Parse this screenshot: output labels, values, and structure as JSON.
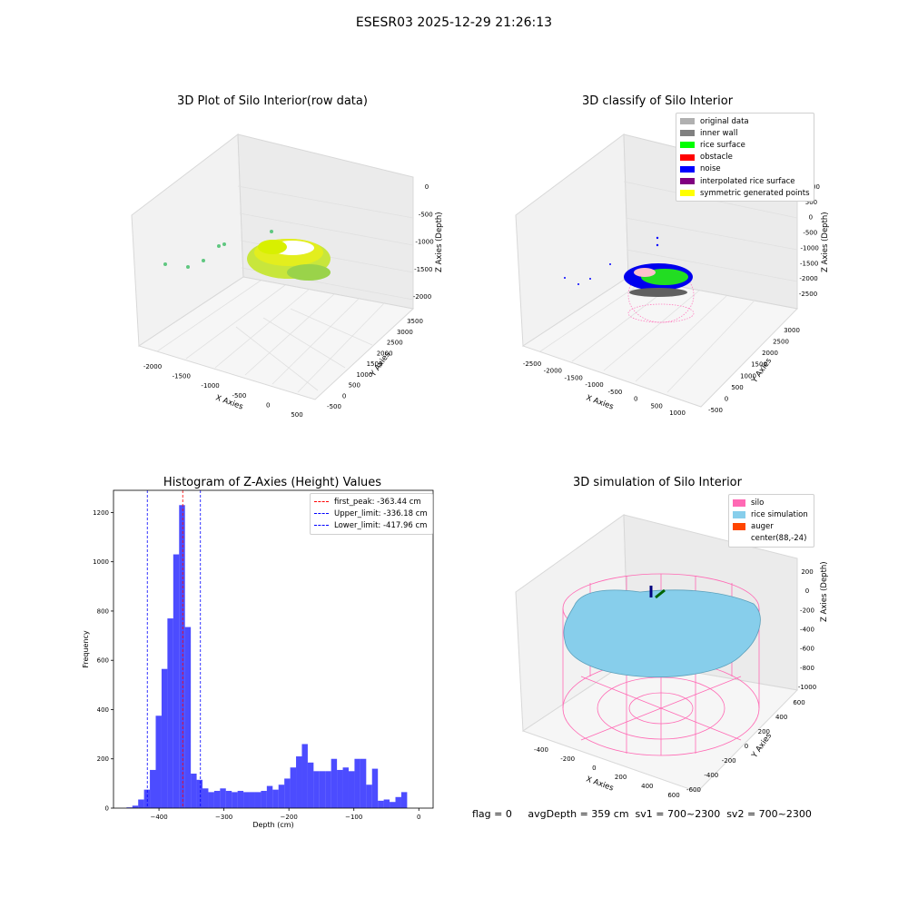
{
  "suptitle": "ESESR03 2025-12-29 21:26:13",
  "panels": {
    "raw": {
      "title": "3D Plot of Silo Interior(row data)",
      "xlabel": "X Axies",
      "ylabel": "Y Axies",
      "zlabel": "Z Axies (Depth)",
      "xticks": [
        "-2000",
        "-1500",
        "-1000",
        "-500",
        "0",
        "500"
      ],
      "yticks": [
        "-500",
        "0",
        "500",
        "1000",
        "1500",
        "2000",
        "2500",
        "3000",
        "3500"
      ],
      "zticks": [
        "0",
        "-500",
        "-1000",
        "-1500",
        "-2000"
      ]
    },
    "classify": {
      "title": "3D classify of Silo Interior",
      "xlabel": "X Axies",
      "ylabel": "Y Axies",
      "zlabel": "Z Axies (Depth)",
      "xticks": [
        "-2500",
        "-2000",
        "-1500",
        "-1000",
        "-500",
        "0",
        "500",
        "1000"
      ],
      "yticks": [
        "-500",
        "0",
        "500",
        "1000",
        "1500",
        "2000",
        "2500",
        "3000"
      ],
      "zticks": [
        "1000",
        "500",
        "0",
        "-500",
        "-1000",
        "-1500",
        "-2000",
        "-2500"
      ],
      "legend": [
        {
          "label": "original data",
          "color": "#b0b0b0"
        },
        {
          "label": "inner wall",
          "color": "#808080"
        },
        {
          "label": "rice surface",
          "color": "#00ff00"
        },
        {
          "label": "obstacle",
          "color": "#ff0000"
        },
        {
          "label": "noise",
          "color": "#0000ff"
        },
        {
          "label": "interpolated rice surface",
          "color": "#800080"
        },
        {
          "label": "symmetric generated points",
          "color": "#ffff00"
        }
      ]
    },
    "simulation": {
      "title": "3D simulation of Silo Interior",
      "xlabel": "X Axies",
      "ylabel": "Y Axies",
      "zlabel": "Z Axies (Depth)",
      "xticks": [
        "-400",
        "-200",
        "0",
        "200",
        "400",
        "600"
      ],
      "yticks": [
        "-600",
        "-400",
        "-200",
        "0",
        "200",
        "400",
        "600"
      ],
      "zticks": [
        "200",
        "0",
        "-200",
        "-400",
        "-600",
        "-800",
        "-1000"
      ],
      "legend": [
        {
          "label": "silo",
          "color": "#ff69b4"
        },
        {
          "label": "rice simulation",
          "color": "#87ceeb"
        },
        {
          "label": "auger",
          "color": "#ff4500"
        },
        {
          "label": "center(88,-24)",
          "color": "#ffffff"
        }
      ]
    }
  },
  "chart_data": [
    {
      "type": "bar",
      "title": "Histogram of Z-Axies (Height) Values",
      "xlabel": "Depth (cm)",
      "ylabel": "Frequency",
      "xlim": [
        -470,
        22
      ],
      "ylim": [
        0,
        1290
      ],
      "xticks": [
        -400,
        -300,
        -200,
        -100,
        0
      ],
      "yticks": [
        0,
        200,
        400,
        600,
        800,
        1000,
        1200
      ],
      "color": "#0000ff",
      "bin_start": -450,
      "bin_width": 9,
      "values": [
        3,
        10,
        35,
        75,
        155,
        375,
        565,
        770,
        1030,
        1230,
        735,
        140,
        115,
        80,
        65,
        70,
        80,
        70,
        65,
        70,
        65,
        65,
        65,
        70,
        90,
        75,
        95,
        120,
        165,
        210,
        260,
        185,
        150,
        150,
        150,
        200,
        155,
        165,
        150,
        200,
        200,
        95,
        160,
        30,
        35,
        25,
        45,
        65
      ],
      "lines": [
        {
          "label": "first_peak: -363.44 cm",
          "x": -363.44,
          "color": "#ff0000"
        },
        {
          "label": "Upper_limit: -336.18 cm",
          "x": -336.18,
          "color": "#0000ff"
        },
        {
          "label": "Lower_limit: -417.96 cm",
          "x": -417.96,
          "color": "#0000ff"
        }
      ],
      "legend_position": "upper right"
    }
  ],
  "footer": {
    "flag": "flag = 0",
    "stats": "avgDepth = 359 cm  sv1 = 700~2300  sv2 = 700~2300"
  }
}
